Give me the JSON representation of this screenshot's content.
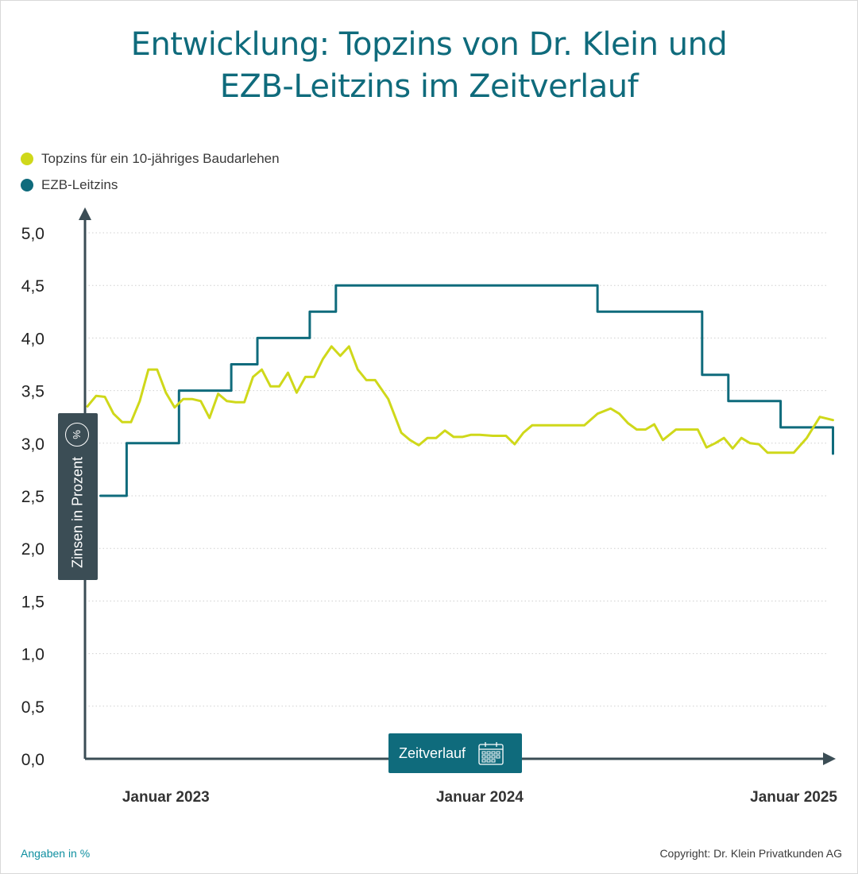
{
  "title_line1": "Entwicklung: Topzins von Dr. Klein und",
  "title_line2": "EZB-Leitzins im Zeitverlauf",
  "legend": [
    {
      "label": "Topzins für ein 10-jähriges Baudarlehen",
      "color": "#cfd81a"
    },
    {
      "label": "EZB-Leitzins",
      "color": "#0f6b7c"
    }
  ],
  "y_axis_label": "Zinsen in Prozent",
  "y_axis_icon": "percent-icon",
  "x_axis_label": "Zeitverlauf",
  "x_axis_icon": "calendar-icon",
  "footer_left": "Angaben in %",
  "footer_right": "Copyright: Dr. Klein Privatkunden AG",
  "chart_data": {
    "type": "line",
    "ylim": [
      0,
      5.0
    ],
    "yticks": [
      "0,0",
      "0,5",
      "1,0",
      "1,5",
      "2,0",
      "2,5",
      "3,0",
      "3,5",
      "4,0",
      "4,5",
      "5,0"
    ],
    "xticks": [
      {
        "label": "Januar 2023",
        "x": "2023-01"
      },
      {
        "label": "Januar 2024",
        "x": "2024-01"
      },
      {
        "label": "Januar 2025",
        "x": "2025-01"
      }
    ],
    "xlim": [
      "2022-10",
      "2025-02"
    ],
    "grid": true,
    "series": [
      {
        "name": "EZB-Leitzins",
        "color": "#0f6b7c",
        "points": [
          [
            "2022-10",
            2.5
          ],
          [
            "2022-11",
            2.5
          ],
          [
            "2022-11",
            3.0
          ],
          [
            "2022-12",
            3.0
          ],
          [
            "2023-01",
            3.0
          ],
          [
            "2023-01",
            3.5
          ],
          [
            "2023-02",
            3.5
          ],
          [
            "2023-03",
            3.5
          ],
          [
            "2023-03",
            3.75
          ],
          [
            "2023-04",
            3.75
          ],
          [
            "2023-04",
            4.0
          ],
          [
            "2023-05",
            4.0
          ],
          [
            "2023-06",
            4.0
          ],
          [
            "2023-06",
            4.25
          ],
          [
            "2023-07",
            4.25
          ],
          [
            "2023-07",
            4.5
          ],
          [
            "2023-08",
            4.5
          ],
          [
            "2023-09",
            4.5
          ],
          [
            "2023-10",
            4.5
          ],
          [
            "2023-11",
            4.5
          ],
          [
            "2023-12",
            4.5
          ],
          [
            "2024-01",
            4.5
          ],
          [
            "2024-02",
            4.5
          ],
          [
            "2024-03",
            4.5
          ],
          [
            "2024-04",
            4.5
          ],
          [
            "2024-05",
            4.5
          ],
          [
            "2024-05",
            4.25
          ],
          [
            "2024-06",
            4.25
          ],
          [
            "2024-07",
            4.25
          ],
          [
            "2024-08",
            4.25
          ],
          [
            "2024-09",
            4.25
          ],
          [
            "2024-09",
            3.65
          ],
          [
            "2024-10",
            3.65
          ],
          [
            "2024-10",
            3.4
          ],
          [
            "2024-11",
            3.4
          ],
          [
            "2024-12",
            3.4
          ],
          [
            "2024-12",
            3.15
          ],
          [
            "2025-01",
            3.15
          ],
          [
            "2025-02",
            3.15
          ],
          [
            "2025-02",
            2.9
          ]
        ]
      },
      {
        "name": "Topzins für ein 10-jähriges Baudarlehen",
        "color": "#cfd81a",
        "points": [
          [
            "2022-10",
            3.35
          ],
          [
            "2022-10",
            3.45
          ],
          [
            "2022-10",
            3.44
          ],
          [
            "2022-11",
            3.28
          ],
          [
            "2022-11",
            3.2
          ],
          [
            "2022-11",
            3.2
          ],
          [
            "2022-12",
            3.4
          ],
          [
            "2022-12",
            3.7
          ],
          [
            "2022-12",
            3.7
          ],
          [
            "2023-01",
            3.48
          ],
          [
            "2023-01",
            3.34
          ],
          [
            "2023-01",
            3.42
          ],
          [
            "2023-02",
            3.42
          ],
          [
            "2023-02",
            3.4
          ],
          [
            "2023-02",
            3.24
          ],
          [
            "2023-03",
            3.47
          ],
          [
            "2023-03",
            3.4
          ],
          [
            "2023-03",
            3.39
          ],
          [
            "2023-04",
            3.39
          ],
          [
            "2023-04",
            3.63
          ],
          [
            "2023-04",
            3.7
          ],
          [
            "2023-05",
            3.54
          ],
          [
            "2023-05",
            3.54
          ],
          [
            "2023-05",
            3.67
          ],
          [
            "2023-06",
            3.48
          ],
          [
            "2023-06",
            3.63
          ],
          [
            "2023-06",
            3.63
          ],
          [
            "2023-07",
            3.8
          ],
          [
            "2023-07",
            3.92
          ],
          [
            "2023-07",
            3.83
          ],
          [
            "2023-08",
            3.92
          ],
          [
            "2023-08",
            3.7
          ],
          [
            "2023-08",
            3.6
          ],
          [
            "2023-09",
            3.6
          ],
          [
            "2023-09",
            3.42
          ],
          [
            "2023-10",
            3.1
          ],
          [
            "2023-10",
            3.03
          ],
          [
            "2023-10",
            2.98
          ],
          [
            "2023-11",
            3.05
          ],
          [
            "2023-11",
            3.05
          ],
          [
            "2023-11",
            3.12
          ],
          [
            "2023-12",
            3.06
          ],
          [
            "2023-12",
            3.06
          ],
          [
            "2023-12",
            3.08
          ],
          [
            "2024-01",
            3.08
          ],
          [
            "2024-01",
            3.07
          ],
          [
            "2024-02",
            3.07
          ],
          [
            "2024-02",
            2.99
          ],
          [
            "2024-02",
            3.1
          ],
          [
            "2024-03",
            3.17
          ],
          [
            "2024-03",
            3.17
          ],
          [
            "2024-04",
            3.17
          ],
          [
            "2024-04",
            3.17
          ],
          [
            "2024-05",
            3.17
          ],
          [
            "2024-05",
            3.28
          ],
          [
            "2024-06",
            3.33
          ],
          [
            "2024-06",
            3.28
          ],
          [
            "2024-06",
            3.19
          ],
          [
            "2024-07",
            3.13
          ],
          [
            "2024-07",
            3.13
          ],
          [
            "2024-07",
            3.18
          ],
          [
            "2024-08",
            3.03
          ],
          [
            "2024-08",
            3.13
          ],
          [
            "2024-09",
            3.13
          ],
          [
            "2024-09",
            3.13
          ],
          [
            "2024-09",
            2.96
          ],
          [
            "2024-10",
            3.0
          ],
          [
            "2024-10",
            3.05
          ],
          [
            "2024-10",
            2.95
          ],
          [
            "2024-11",
            3.05
          ],
          [
            "2024-11",
            3.0
          ],
          [
            "2024-11",
            2.99
          ],
          [
            "2024-12",
            2.91
          ],
          [
            "2024-12",
            2.91
          ],
          [
            "2025-01",
            2.91
          ],
          [
            "2025-01",
            3.05
          ],
          [
            "2025-02",
            3.25
          ],
          [
            "2025-02",
            3.22
          ]
        ]
      }
    ]
  }
}
